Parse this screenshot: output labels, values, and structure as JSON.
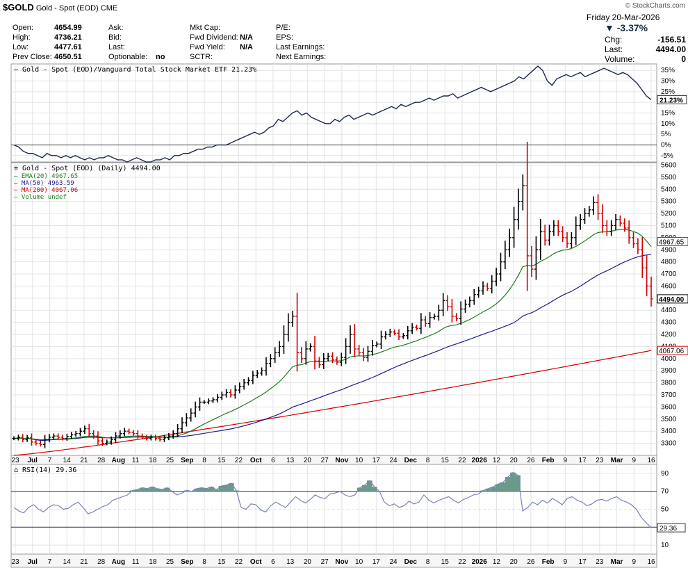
{
  "header": {
    "symbol": "$GOLD",
    "name": "Gold - Spot (EOD)",
    "exchange": "CME",
    "brand": "© StockCharts.com",
    "date": "Friday  20-Mar-2026",
    "change_pct": "-3.37%",
    "chg_label": "Chg:",
    "chg_value": "-156.51",
    "last_label": "Last:",
    "last_value": "4494.00",
    "volume_label": "Volume:",
    "volume_value": "0",
    "fields": [
      {
        "label": "Open:",
        "value": "4654.99"
      },
      {
        "label": "High:",
        "value": "4736.21"
      },
      {
        "label": "Low:",
        "value": "4477.61"
      },
      {
        "label": "Prev Close:",
        "value": "4650.51"
      },
      {
        "label": "Ask:",
        "value": ""
      },
      {
        "label": "Bid:",
        "value": ""
      },
      {
        "label": "Last:",
        "value": ""
      },
      {
        "label": "Optionable:",
        "value": "no"
      },
      {
        "label": "Mkt Cap:",
        "value": ""
      },
      {
        "label": "Fwd Dividend:",
        "value": "N/A"
      },
      {
        "label": "Fwd Yield:",
        "value": "N/A"
      },
      {
        "label": "SCTR:",
        "value": ""
      },
      {
        "label": "P/E:",
        "value": ""
      },
      {
        "label": "EPS:",
        "value": ""
      },
      {
        "label": "Last Earnings:",
        "value": ""
      },
      {
        "label": "Next Earnings:",
        "value": ""
      }
    ]
  },
  "colors": {
    "up": "#000000",
    "down": "#d00000",
    "ema": "#1e7d1e",
    "ma50": "#1a1a8c",
    "ma200": "#d00000",
    "ratio": "#1a2a4a",
    "rsi": "#7a83b8",
    "rsiFill": "#6a9a8a"
  },
  "chart_data": [
    {
      "type": "line",
      "title": "Gold - Spot (EOD)/Vanguard Total Stock Market ETF 21.23%",
      "ylim": [
        -8,
        38
      ],
      "ticks": [
        "35%",
        "30%",
        "25%",
        "20%",
        "15%",
        "10%",
        "5%",
        "0%",
        "-5%"
      ],
      "tick_values": [
        35,
        30,
        25,
        20,
        15,
        10,
        5,
        0,
        -5
      ],
      "last_label": "21.23%",
      "values": [
        0,
        -1,
        -3,
        -4,
        -4,
        -5,
        -6,
        -4,
        -5,
        -5,
        -6,
        -5,
        -6,
        -5,
        -6,
        -7,
        -6,
        -7,
        -6,
        -6,
        -5,
        -6,
        -7,
        -7,
        -8,
        -7,
        -6,
        -7,
        -8,
        -8,
        -7,
        -7,
        -6,
        -7,
        -5,
        -5,
        -4,
        -4,
        -3,
        -2,
        -2,
        -1,
        -1,
        0,
        0,
        0,
        1,
        2,
        3,
        4,
        5,
        6,
        5,
        6,
        8,
        9,
        12,
        11,
        13,
        15,
        16,
        14,
        15,
        13,
        12,
        11,
        10,
        10,
        12,
        11,
        13,
        14,
        12,
        13,
        14,
        15,
        14,
        15,
        16,
        17,
        18,
        17,
        19,
        18,
        19,
        20,
        20,
        21,
        22,
        21,
        22,
        23,
        23,
        24,
        22,
        23,
        24,
        25,
        26,
        27,
        26,
        25,
        26,
        27,
        28,
        29,
        30,
        32,
        31,
        33,
        35,
        37,
        35,
        30,
        28,
        31,
        32,
        33,
        32,
        33,
        34,
        32,
        33,
        34,
        35,
        36,
        35,
        34,
        33,
        34,
        33,
        31,
        29,
        26,
        23,
        21.23
      ]
    },
    {
      "type": "ohlc",
      "title": "Gold - Spot (EOD) (Daily) 4494.00",
      "legend": [
        "EMA(20) 4967.65",
        "MA(50) 4963.59",
        "MA(200) 4067.06",
        "Volume undef"
      ],
      "ylim": [
        3200,
        5620
      ],
      "ticks": [
        "5600",
        "5500",
        "5400",
        "5300",
        "5200",
        "5100",
        "5000",
        "4900",
        "4800",
        "4700",
        "4600",
        "4500",
        "4400",
        "4300",
        "4200",
        "4100",
        "4000",
        "3900",
        "3800",
        "3700",
        "3600",
        "3500",
        "3400",
        "3300"
      ],
      "tick_values": [
        5600,
        5500,
        5400,
        5300,
        5200,
        5100,
        5000,
        4900,
        4800,
        4700,
        4600,
        4500,
        4400,
        4300,
        4200,
        4100,
        4000,
        3900,
        3800,
        3700,
        3600,
        3500,
        3400,
        3300
      ],
      "right_labels": {
        "ema": "4967.65",
        "last": "4494.00",
        "ma200": "4067.06"
      },
      "closes": [
        3340,
        3350,
        3330,
        3345,
        3310,
        3300,
        3290,
        3330,
        3350,
        3360,
        3350,
        3340,
        3355,
        3370,
        3380,
        3400,
        3420,
        3380,
        3360,
        3320,
        3300,
        3310,
        3330,
        3360,
        3380,
        3400,
        3390,
        3380,
        3360,
        3350,
        3340,
        3350,
        3340,
        3330,
        3345,
        3360,
        3380,
        3420,
        3470,
        3510,
        3550,
        3600,
        3640,
        3640,
        3650,
        3660,
        3680,
        3700,
        3720,
        3700,
        3740,
        3770,
        3800,
        3820,
        3860,
        3880,
        3900,
        3960,
        4000,
        4050,
        4100,
        4200,
        4300,
        4350,
        4050,
        4000,
        4080,
        4100,
        3980,
        3950,
        4000,
        4020,
        3990,
        3970,
        4010,
        4100,
        4200,
        4080,
        4050,
        4010,
        4060,
        4110,
        4120,
        4180,
        4200,
        4220,
        4210,
        4180,
        4190,
        4230,
        4260,
        4250,
        4320,
        4290,
        4340,
        4350,
        4400,
        4480,
        4430,
        4350,
        4330,
        4410,
        4450,
        4480,
        4530,
        4560,
        4600,
        4580,
        4640,
        4700,
        4800,
        4900,
        5000,
        5150,
        5300,
        5430,
        4850,
        4740,
        4900,
        5050,
        4980,
        5050,
        5100,
        5050,
        5000,
        4950,
        5000,
        5100,
        5150,
        5200,
        5230,
        5290,
        5200,
        5100,
        5050,
        5100,
        5150,
        5120,
        5080,
        5000,
        4950,
        4900,
        4750,
        4600,
        4494
      ]
    },
    {
      "type": "line",
      "title": "RSI(14) 29.36",
      "ylim": [
        0,
        100
      ],
      "ticks": [
        "90",
        "70",
        "50",
        "30",
        "10"
      ],
      "tick_values": [
        90,
        70,
        50,
        30,
        10
      ],
      "last_label": "29.36",
      "values": [
        52,
        48,
        46,
        52,
        55,
        50,
        47,
        52,
        55,
        54,
        50,
        51,
        55,
        58,
        52,
        45,
        47,
        50,
        53,
        55,
        60,
        62,
        64,
        66,
        71,
        72,
        74,
        73,
        75,
        73,
        72,
        74,
        70,
        66,
        68,
        71,
        70,
        73,
        74,
        73,
        75,
        72,
        76,
        77,
        79,
        71,
        52,
        50,
        56,
        55,
        49,
        47,
        54,
        58,
        55,
        52,
        58,
        64,
        60,
        57,
        61,
        66,
        63,
        62,
        67,
        68,
        70,
        66,
        64,
        66,
        74,
        77,
        82,
        75,
        70,
        58,
        54,
        56,
        52,
        54,
        59,
        56,
        58,
        66,
        60,
        57,
        60,
        62,
        64,
        60,
        57,
        61,
        63,
        66,
        67,
        71,
        73,
        75,
        78,
        80,
        86,
        91,
        88,
        48,
        52,
        58,
        55,
        60,
        57,
        62,
        59,
        55,
        62,
        64,
        60,
        58,
        54,
        56,
        60,
        61,
        59,
        62,
        64,
        60,
        58,
        55,
        50,
        41,
        35,
        29.36
      ]
    }
  ],
  "x_axis": {
    "labels": [
      "23",
      "Jul",
      "7",
      "14",
      "21",
      "28",
      "Aug",
      "11",
      "18",
      "25",
      "Sep",
      "8",
      "15",
      "22",
      "Oct",
      "6",
      "13",
      "20",
      "27",
      "Nov",
      "10",
      "17",
      "24",
      "Dec",
      "8",
      "15",
      "22",
      "2026",
      "12",
      "20",
      "26",
      "Feb",
      "9",
      "17",
      "23",
      "Mar",
      "9",
      "16"
    ],
    "bold": [
      "Jul",
      "Aug",
      "Sep",
      "Oct",
      "Nov",
      "Dec",
      "2026",
      "Feb",
      "Mar"
    ]
  }
}
